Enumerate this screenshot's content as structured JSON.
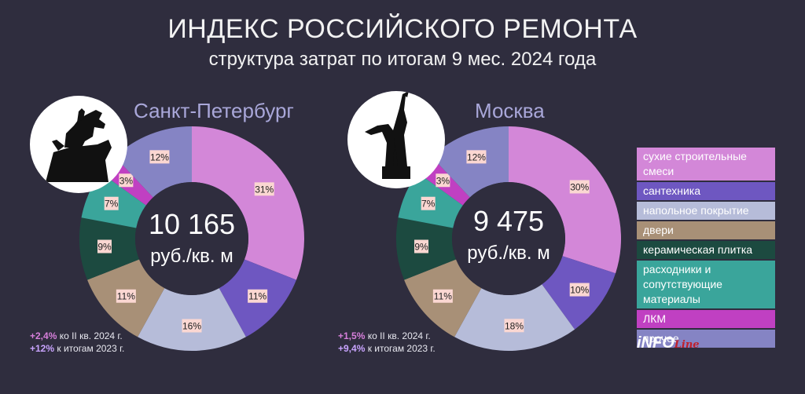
{
  "header": {
    "title": "ИНДЕКС РОССИЙСКОГО РЕМОНТА",
    "subtitle": "структура затрат по итогам 9 мес. 2024 года"
  },
  "legend": [
    {
      "label": "сухие строительные смеси",
      "color": "#d387d8"
    },
    {
      "label": "сантехника",
      "color": "#6e57c1"
    },
    {
      "label": "напольное покрытие",
      "color": "#b6bcd9"
    },
    {
      "label": "двери",
      "color": "#a89077"
    },
    {
      "label": "керамическая плитка",
      "color": "#1c4a40"
    },
    {
      "label": "расходники и сопутствующие материалы",
      "color": "#3aa59b"
    },
    {
      "label": "ЛКМ",
      "color": "#c040c2"
    },
    {
      "label": "прочее",
      "color": "#8584c4"
    }
  ],
  "chart_data": [
    {
      "type": "pie",
      "title": "Санкт-Петербург",
      "center_value": "10 165",
      "center_unit": "руб./кв. м",
      "categories": [
        "сухие строительные смеси",
        "сантехника",
        "напольное покрытие",
        "двери",
        "керамическая плитка",
        "расходники и сопутствующие материалы",
        "ЛКМ",
        "прочее"
      ],
      "values": [
        31,
        11,
        16,
        11,
        9,
        7,
        3,
        12
      ],
      "labels": [
        "31%",
        "11%",
        "16%",
        "11%",
        "9%",
        "7%",
        "3%",
        "12%"
      ],
      "notes": [
        {
          "value": "+2,4%",
          "text": "ко II кв. 2024 г."
        },
        {
          "value": "+12%",
          "text": "к итогам 2023 г."
        }
      ]
    },
    {
      "type": "pie",
      "title": "Москва",
      "center_value": "9 475",
      "center_unit": "руб./кв. м",
      "categories": [
        "сухие строительные смеси",
        "сантехника",
        "напольное покрытие",
        "двери",
        "керамическая плитка",
        "расходники и сопутствующие материалы",
        "ЛКМ",
        "прочее"
      ],
      "values": [
        30,
        10,
        18,
        11,
        9,
        7,
        3,
        12
      ],
      "labels": [
        "30%",
        "10%",
        "18%",
        "11%",
        "9%",
        "7%",
        "3%",
        "12%"
      ],
      "notes": [
        {
          "value": "+1,5%",
          "text": "ко II кв. 2024 г."
        },
        {
          "value": "+9,4%",
          "text": "к итогам 2023 г."
        }
      ]
    }
  ],
  "logo": {
    "main": "iNFO",
    "script": "Line"
  }
}
